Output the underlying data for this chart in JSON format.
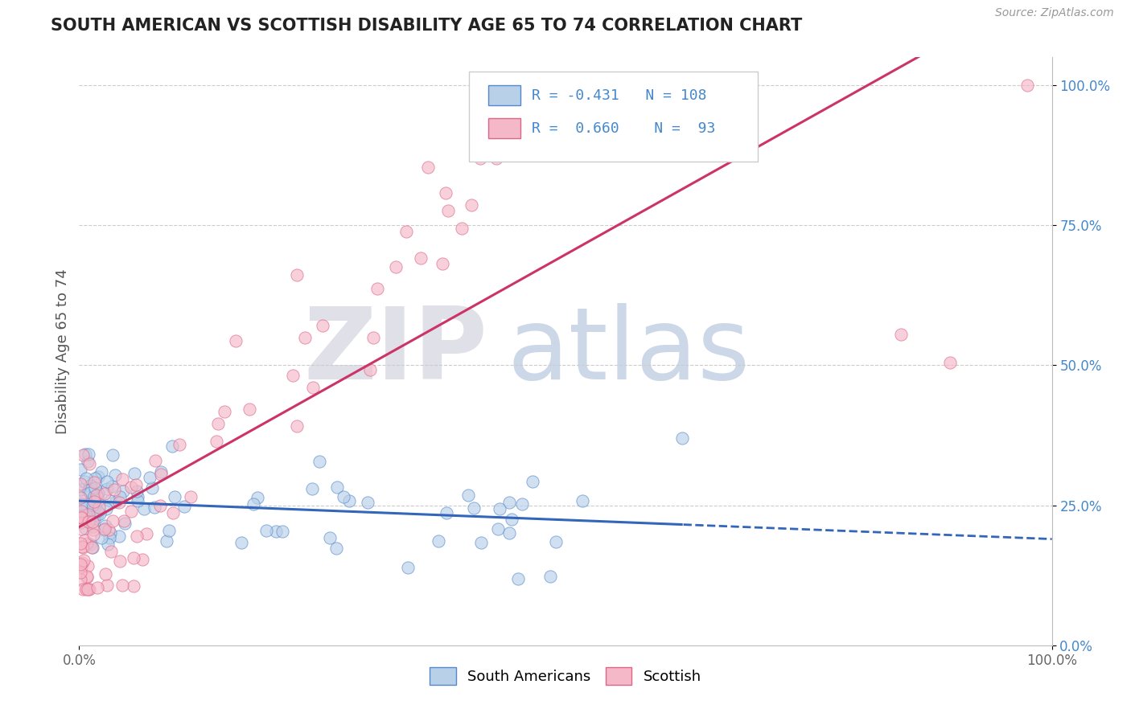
{
  "title": "SOUTH AMERICAN VS SCOTTISH DISABILITY AGE 65 TO 74 CORRELATION CHART",
  "source": "Source: ZipAtlas.com",
  "ylabel": "Disability Age 65 to 74",
  "xlim": [
    0.0,
    1.0
  ],
  "ylim": [
    0.0,
    1.05
  ],
  "background_color": "#ffffff",
  "legend": {
    "r1": "-0.431",
    "n1": "108",
    "r2": "0.660",
    "n2": "93",
    "color1": "#b8d0e8",
    "color2": "#f5b8c8"
  },
  "south_americans": {
    "color": "#b8d0e8",
    "edge_color": "#5588cc",
    "line_color": "#3366bb"
  },
  "scottish": {
    "color": "#f5b8c8",
    "edge_color": "#dd6688",
    "line_color": "#cc3366"
  },
  "right_ytick_color": "#4488cc",
  "grid_color": "#cccccc",
  "watermark_zip_color": "#e0e0e8",
  "watermark_atlas_color": "#ccd8e8"
}
